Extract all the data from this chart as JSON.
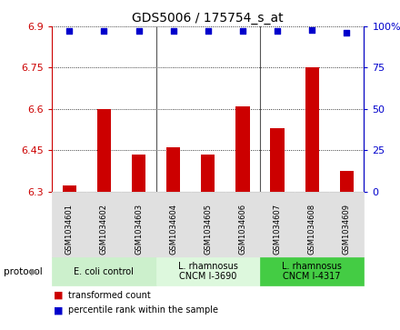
{
  "title": "GDS5006 / 175754_s_at",
  "samples": [
    "GSM1034601",
    "GSM1034602",
    "GSM1034603",
    "GSM1034604",
    "GSM1034605",
    "GSM1034606",
    "GSM1034607",
    "GSM1034608",
    "GSM1034609"
  ],
  "transformed_counts": [
    6.32,
    6.6,
    6.435,
    6.46,
    6.435,
    6.61,
    6.53,
    6.75,
    6.375
  ],
  "percentile_ranks": [
    97,
    97,
    97,
    97,
    97,
    97,
    97,
    98,
    96
  ],
  "ylim_left": [
    6.3,
    6.9
  ],
  "ylim_right": [
    0,
    100
  ],
  "yticks_left": [
    6.3,
    6.45,
    6.6,
    6.75,
    6.9
  ],
  "ytick_labels_left": [
    "6.3",
    "6.45",
    "6.6",
    "6.75",
    "6.9"
  ],
  "yticks_right": [
    0,
    25,
    50,
    75,
    100
  ],
  "ytick_labels_right": [
    "0",
    "25",
    "50",
    "75",
    "100%"
  ],
  "bar_color": "#CC0000",
  "dot_color": "#0000CC",
  "protocol_groups": [
    {
      "label": "E. coli control",
      "start": 0,
      "end": 3,
      "color": "#ccf0cc"
    },
    {
      "label": "L. rhamnosus\nCNCM I-3690",
      "start": 3,
      "end": 6,
      "color": "#ddf8dd"
    },
    {
      "label": "L. rhamnosus\nCNCM I-4317",
      "start": 6,
      "end": 9,
      "color": "#44cc44"
    }
  ],
  "legend_bar_label": "transformed count",
  "legend_dot_label": "percentile rank within the sample",
  "protocol_label": "protocol",
  "tick_color_left": "#CC0000",
  "tick_color_right": "#0000CC",
  "sample_bg_color": "#e0e0e0",
  "bar_width": 0.4,
  "group_divider_color": "#555555"
}
